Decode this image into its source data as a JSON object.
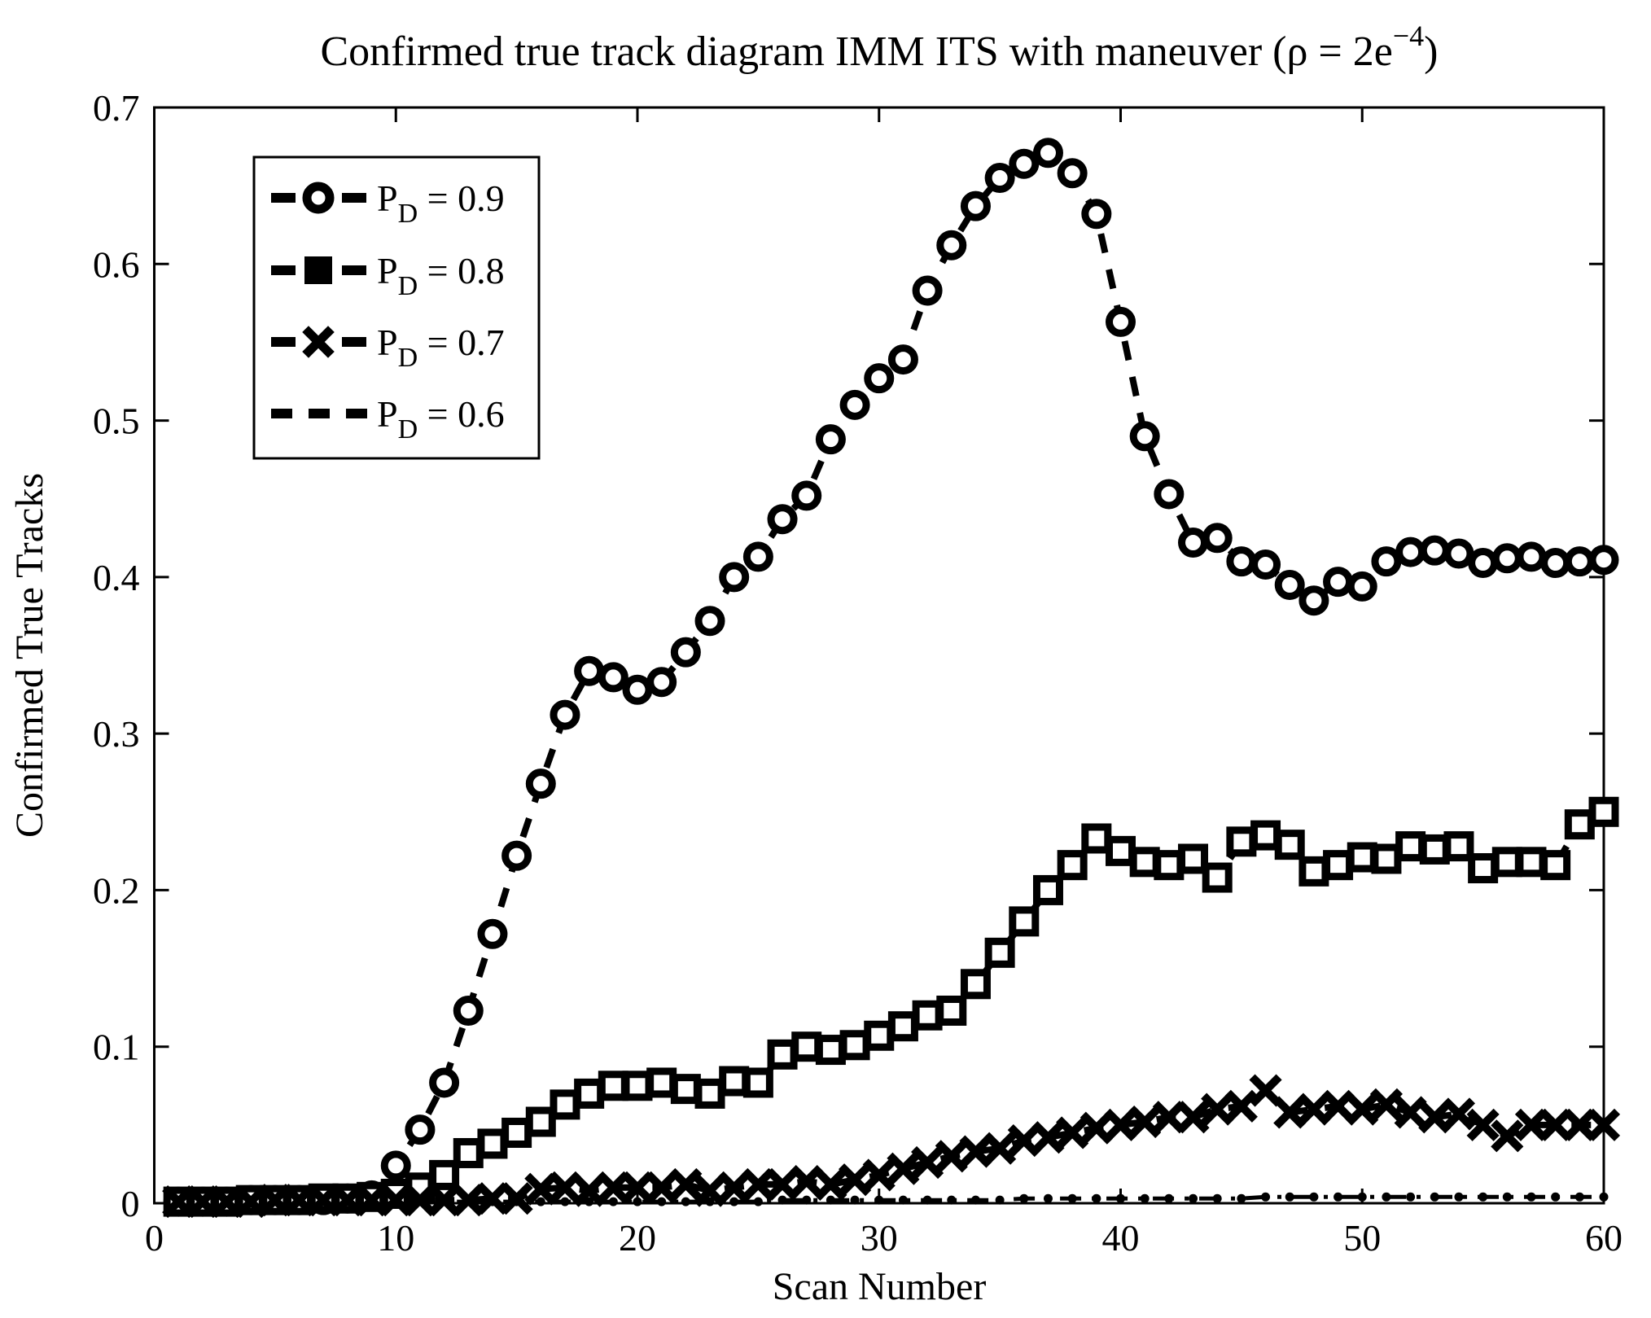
{
  "figure": {
    "background": "#ffffff",
    "ink_color": "#000000"
  },
  "title": {
    "prefix": "Confirmed true track diagram IMM ITS with maneuver (ρ = 2e",
    "superscript": "−4",
    "suffix": ")",
    "full_text": "Confirmed true track diagram IMM ITS with maneuver (ρ = 2e−4)"
  },
  "axes": {
    "xlabel": "Scan Number",
    "ylabel": "Confirmed True Tracks"
  },
  "chart_data": {
    "type": "line",
    "title": "Confirmed true track diagram IMM ITS with maneuver (ρ = 2e−4)",
    "xlabel": "Scan Number",
    "ylabel": "Confirmed True Tracks",
    "xlim": [
      0,
      60
    ],
    "ylim": [
      0,
      0.7
    ],
    "xticks": [
      0,
      10,
      20,
      30,
      40,
      50,
      60
    ],
    "xtick_labels": [
      "0",
      "10",
      "20",
      "30",
      "40",
      "50",
      "60"
    ],
    "yticks": [
      0,
      0.1,
      0.2,
      0.3,
      0.4,
      0.5,
      0.6,
      0.7
    ],
    "ytick_labels": [
      "0",
      "0.1",
      "0.2",
      "0.3",
      "0.4",
      "0.5",
      "0.6",
      "0.7"
    ],
    "grid": false,
    "legend_position": "upper-left-inside",
    "line_color": "#000000",
    "x": [
      1,
      2,
      3,
      4,
      5,
      6,
      7,
      8,
      9,
      10,
      11,
      12,
      13,
      14,
      15,
      16,
      17,
      18,
      19,
      20,
      21,
      22,
      23,
      24,
      25,
      26,
      27,
      28,
      29,
      30,
      31,
      32,
      33,
      34,
      35,
      36,
      37,
      38,
      39,
      40,
      41,
      42,
      43,
      44,
      45,
      46,
      47,
      48,
      49,
      50,
      51,
      52,
      53,
      54,
      55,
      56,
      57,
      58,
      59,
      60
    ],
    "series": [
      {
        "name": "P_D = 0.9",
        "label": {
          "base": "P",
          "sub": "D",
          "rest": " = 0.9"
        },
        "marker": "circle",
        "linestyle": "dashed",
        "values": [
          0.001,
          0.001,
          0.001,
          0.002,
          0.002,
          0.002,
          0.002,
          0.003,
          0.005,
          0.024,
          0.047,
          0.077,
          0.123,
          0.172,
          0.222,
          0.268,
          0.312,
          0.34,
          0.336,
          0.328,
          0.333,
          0.352,
          0.372,
          0.4,
          0.413,
          0.437,
          0.452,
          0.488,
          0.51,
          0.527,
          0.539,
          0.583,
          0.612,
          0.637,
          0.655,
          0.664,
          0.671,
          0.658,
          0.632,
          0.563,
          0.49,
          0.453,
          0.422,
          0.425,
          0.41,
          0.408,
          0.395,
          0.385,
          0.397,
          0.394,
          0.41,
          0.416,
          0.417,
          0.415,
          0.409,
          0.412,
          0.413,
          0.409,
          0.41,
          0.411
        ]
      },
      {
        "name": "P_D = 0.8",
        "label": {
          "base": "P",
          "sub": "D",
          "rest": " = 0.8"
        },
        "marker": "square",
        "linestyle": "dashed",
        "values": [
          0.001,
          0.001,
          0.001,
          0.002,
          0.002,
          0.002,
          0.003,
          0.003,
          0.004,
          0.006,
          0.01,
          0.018,
          0.032,
          0.038,
          0.045,
          0.052,
          0.063,
          0.07,
          0.075,
          0.075,
          0.077,
          0.073,
          0.07,
          0.078,
          0.077,
          0.095,
          0.1,
          0.098,
          0.101,
          0.107,
          0.113,
          0.12,
          0.123,
          0.14,
          0.16,
          0.18,
          0.2,
          0.216,
          0.233,
          0.225,
          0.218,
          0.216,
          0.22,
          0.208,
          0.231,
          0.235,
          0.229,
          0.212,
          0.216,
          0.221,
          0.22,
          0.228,
          0.226,
          0.228,
          0.214,
          0.218,
          0.218,
          0.216,
          0.242,
          0.25
        ]
      },
      {
        "name": "P_D = 0.7",
        "label": {
          "base": "P",
          "sub": "D",
          "rest": " = 0.7"
        },
        "marker": "x",
        "linestyle": "dashed",
        "values": [
          0.001,
          0.001,
          0.001,
          0.001,
          0.002,
          0.002,
          0.002,
          0.002,
          0.002,
          0.002,
          0.002,
          0.002,
          0.002,
          0.003,
          0.003,
          0.009,
          0.01,
          0.008,
          0.01,
          0.01,
          0.01,
          0.012,
          0.008,
          0.01,
          0.012,
          0.012,
          0.014,
          0.012,
          0.015,
          0.018,
          0.022,
          0.026,
          0.03,
          0.033,
          0.035,
          0.04,
          0.042,
          0.045,
          0.048,
          0.05,
          0.052,
          0.055,
          0.055,
          0.06,
          0.062,
          0.072,
          0.058,
          0.06,
          0.062,
          0.06,
          0.063,
          0.058,
          0.055,
          0.057,
          0.05,
          0.043,
          0.05,
          0.05,
          0.05,
          0.05
        ]
      },
      {
        "name": "P_D = 0.6",
        "label": {
          "base": "P",
          "sub": "D",
          "rest": " = 0.6"
        },
        "marker": "dot",
        "linestyle": "dash-dot",
        "values": [
          0.001,
          0.001,
          0.001,
          0.001,
          0.001,
          0.001,
          0.001,
          0.001,
          0.001,
          0.001,
          0.001,
          0.001,
          0.001,
          0.001,
          0.001,
          0.001,
          0.001,
          0.001,
          0.001,
          0.001,
          0.001,
          0.001,
          0.001,
          0.001,
          0.001,
          0.002,
          0.002,
          0.002,
          0.002,
          0.002,
          0.002,
          0.002,
          0.002,
          0.002,
          0.002,
          0.003,
          0.003,
          0.003,
          0.003,
          0.003,
          0.003,
          0.003,
          0.003,
          0.003,
          0.003,
          0.004,
          0.004,
          0.004,
          0.004,
          0.004,
          0.004,
          0.004,
          0.004,
          0.004,
          0.004,
          0.004,
          0.004,
          0.004,
          0.004,
          0.004
        ]
      }
    ]
  }
}
